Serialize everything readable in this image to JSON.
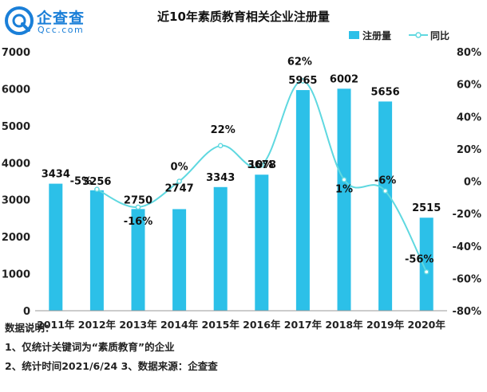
{
  "logo": {
    "name": "企查查",
    "domain": "Qcc.com",
    "icon": "magnifier-logo-icon"
  },
  "title": "近10年素质教育相关企业注册量",
  "legend": {
    "bar_label": "注册量",
    "line_label": "同比"
  },
  "colors": {
    "bar": "#2cc0e8",
    "line": "#5fd8e0",
    "text": "#111111",
    "brand": "#1a7fd8"
  },
  "notes": {
    "heading": "数据说明：",
    "line1": "1、仅统计关键词为“素质教育”的企业",
    "line2": "2、统计时间2021/6/24   3、数据来源：企查查"
  },
  "chart_data": {
    "type": "bar",
    "categories": [
      "2011年",
      "2012年",
      "2013年",
      "2014年",
      "2015年",
      "2016年",
      "2017年",
      "2018年",
      "2019年",
      "2020年"
    ],
    "series": [
      {
        "name": "注册量",
        "type": "bar",
        "axis": "left",
        "values": [
          3434,
          3256,
          2750,
          2747,
          3343,
          3678,
          5965,
          6002,
          5656,
          2515
        ],
        "labels": [
          "3434",
          "3256",
          "2750",
          "2747",
          "3343",
          "3678",
          "5965",
          "6002",
          "5656",
          "2515"
        ]
      },
      {
        "name": "同比",
        "type": "line",
        "axis": "right",
        "values": [
          null,
          -5,
          -16,
          0,
          22,
          10,
          62,
          1,
          -6,
          -56
        ],
        "labels": [
          "",
          "-5%",
          "-16%",
          "0%",
          "22%",
          "10%",
          "62%",
          "1%",
          "-6%",
          "-56%"
        ]
      }
    ],
    "y_left": {
      "min": 0,
      "max": 7000,
      "ticks": [
        "0",
        "1000",
        "2000",
        "3000",
        "4000",
        "5000",
        "6000",
        "7000"
      ]
    },
    "y_right": {
      "min": -80,
      "max": 80,
      "ticks": [
        "-80%",
        "-60%",
        "-40%",
        "-20%",
        "0%",
        "20%",
        "40%",
        "60%",
        "80%"
      ]
    },
    "grid": false,
    "legend_position": "top-right"
  }
}
